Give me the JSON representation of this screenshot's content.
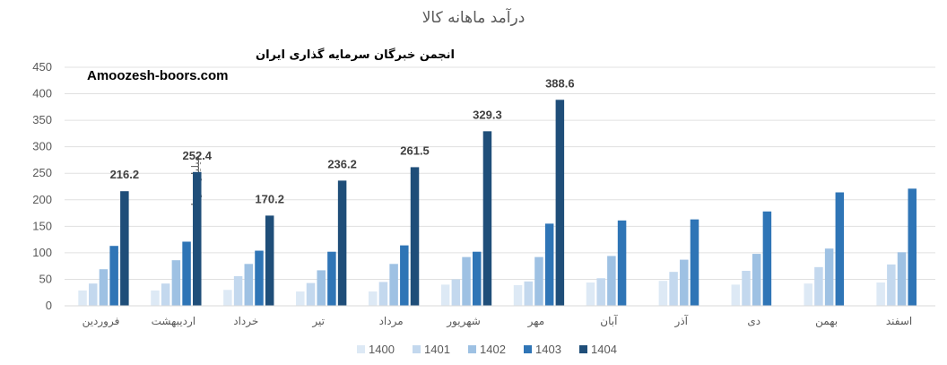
{
  "chart_data": {
    "type": "bar",
    "title": "درآمد ماهانه کالا",
    "ylabel": "میلیارد تومان",
    "xlabel": "",
    "ylim": [
      0,
      450
    ],
    "yticks": [
      0,
      50,
      100,
      150,
      200,
      250,
      300,
      350,
      400,
      450
    ],
    "grid": true,
    "legend_position": "bottom",
    "categories": [
      "فروردین",
      "اردیبهشت",
      "خرداد",
      "تیر",
      "مرداد",
      "شهریور",
      "مهر",
      "آبان",
      "آذر",
      "دی",
      "بهمن",
      "اسفند"
    ],
    "series": [
      {
        "name": "1400",
        "color": "#dde9f5",
        "values": [
          29,
          29,
          30,
          27,
          27,
          40,
          39,
          44,
          47,
          40,
          42,
          44
        ]
      },
      {
        "name": "1401",
        "color": "#c3d8ee",
        "values": [
          42,
          42,
          56,
          43,
          45,
          50,
          46,
          52,
          64,
          66,
          73,
          78
        ]
      },
      {
        "name": "1402",
        "color": "#9ec1e3",
        "values": [
          69,
          86,
          79,
          67,
          79,
          92,
          92,
          94,
          87,
          98,
          108,
          101
        ]
      },
      {
        "name": "1403",
        "color": "#2f75b6",
        "values": [
          113,
          121,
          104,
          102,
          114,
          102,
          155,
          161,
          163,
          178,
          214,
          221
        ]
      },
      {
        "name": "1404",
        "color": "#1f4e79",
        "values": [
          216.2,
          252.4,
          170.2,
          236.2,
          261.5,
          329.3,
          388.6,
          null,
          null,
          null,
          null,
          null
        ]
      }
    ],
    "data_labels": {
      "series": "1404",
      "values": [
        "216.2",
        "252.4",
        "170.2",
        "236.2",
        "261.5",
        "329.3",
        "388.6"
      ]
    }
  },
  "watermark": {
    "line1": "انجمن خبرگان سرمایه گذاری ایران",
    "line2": "Amoozesh-boors.com"
  }
}
